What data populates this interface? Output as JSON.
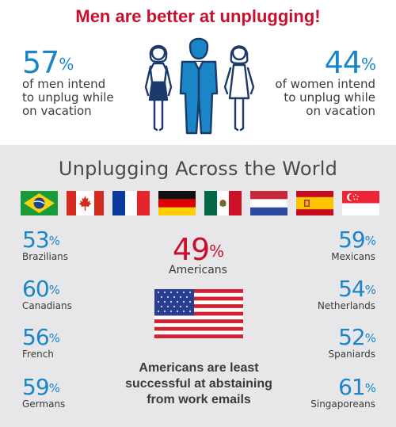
{
  "header": {
    "headline": "Men are better at unplugging!"
  },
  "men": {
    "value": "57",
    "unit": "%",
    "desc": [
      "of men intend",
      "to unplug while",
      "on vacation"
    ]
  },
  "women": {
    "value": "44",
    "unit": "%",
    "desc": [
      "of women intend",
      "to unplug while",
      "on vacation"
    ]
  },
  "world": {
    "title": "Unplugging Across the World",
    "flags": [
      "Brazil",
      "Canada",
      "France",
      "Germany",
      "Mexico",
      "Netherlands",
      "Spain",
      "Singapore"
    ],
    "left": [
      {
        "value": "53",
        "unit": "%",
        "label": "Brazilians"
      },
      {
        "value": "60",
        "unit": "%",
        "label": "Canadians"
      },
      {
        "value": "56",
        "unit": "%",
        "label": "French"
      },
      {
        "value": "59",
        "unit": "%",
        "label": "Germans"
      }
    ],
    "right": [
      {
        "value": "59",
        "unit": "%",
        "label": "Mexicans"
      },
      {
        "value": "54",
        "unit": "%",
        "label": "Netherlands"
      },
      {
        "value": "52",
        "unit": "%",
        "label": "Spaniards"
      },
      {
        "value": "61",
        "unit": "%",
        "label": "Singaporeans"
      }
    ],
    "americans": {
      "value": "49",
      "unit": "%",
      "label": "Americans"
    },
    "note": [
      "Americans are least",
      "successful at abstaining",
      "from work emails"
    ]
  },
  "colors": {
    "accent_red": "#c8102e",
    "accent_blue": "#1a86c8",
    "figure_blue": "#1a86c8",
    "figure_navy": "#1b3a6b",
    "panel_gray": "#e7e7e9"
  }
}
